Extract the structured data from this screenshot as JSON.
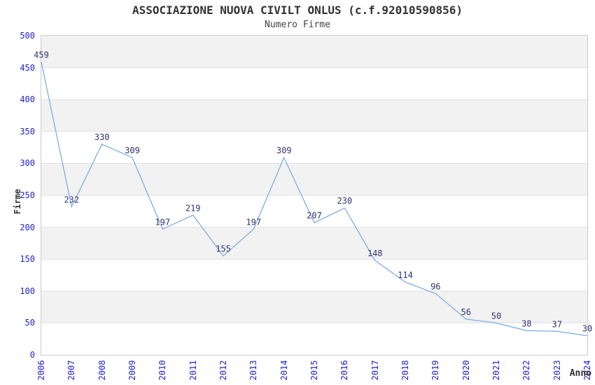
{
  "chart_data": {
    "type": "line",
    "title": "ASSOCIAZIONE NUOVA CIVILT ONLUS (c.f.92010590856)",
    "subtitle": "Numero Firme",
    "xlabel": "Anno",
    "ylabel": "Firme",
    "categories": [
      "2006",
      "2007",
      "2008",
      "2009",
      "2010",
      "2011",
      "2012",
      "2013",
      "2014",
      "2015",
      "2016",
      "2017",
      "2018",
      "2019",
      "2020",
      "2021",
      "2022",
      "2023",
      "2024"
    ],
    "series": [
      {
        "name": "Numero Firme",
        "values": [
          459,
          232,
          330,
          309,
          197,
          219,
          155,
          197,
          309,
          207,
          230,
          148,
          114,
          96,
          56,
          50,
          38,
          37,
          30
        ]
      }
    ],
    "ylim": [
      0,
      500
    ],
    "ytick_step": 50,
    "grid": "horizontal-bands-alternating-gray",
    "legend": "none",
    "point_labels": "above-points",
    "x_tick_rotation": -90,
    "colors": {
      "line": "#7fadе3",
      "line_stroke": "#7fade3",
      "point_label": "#333370",
      "tick_label": "#2222cc",
      "band_gray": "#f2f2f2",
      "gridline": "#e0e0e0",
      "plot_border": "#cccccc",
      "axis_label": "#333333",
      "title": "#333333"
    }
  }
}
